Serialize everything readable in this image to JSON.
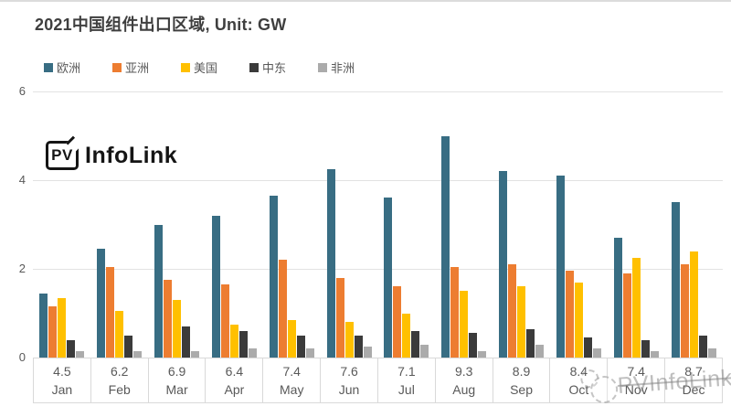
{
  "title": "2021中国组件出口区域, Unit: GW",
  "logo": {
    "box_text": "PV",
    "brand_text": "InfoLink"
  },
  "watermark": {
    "text": "PVInfoLink"
  },
  "chart_data": {
    "type": "bar",
    "title": "2021中国组件出口区域, Unit: GW",
    "unit": "GW",
    "categories": [
      "Jan",
      "Feb",
      "Mar",
      "Apr",
      "May",
      "Jun",
      "Jul",
      "Aug",
      "Sep",
      "Oct",
      "Nov",
      "Dec"
    ],
    "monthly_totals": [
      "4.5",
      "6.2",
      "6.9",
      "6.4",
      "7.4",
      "7.6",
      "7.1",
      "9.3",
      "8.9",
      "8.4",
      "7.4",
      "8.7"
    ],
    "series": [
      {
        "name": "欧洲",
        "color": "#386d83",
        "values": [
          1.45,
          2.45,
          3.0,
          3.2,
          3.65,
          4.25,
          3.6,
          5.0,
          4.2,
          4.1,
          2.7,
          3.5
        ]
      },
      {
        "name": "亚洲",
        "color": "#ed7d31",
        "values": [
          1.15,
          2.05,
          1.75,
          1.65,
          2.2,
          1.8,
          1.6,
          2.05,
          2.1,
          1.95,
          1.9,
          2.1
        ]
      },
      {
        "name": "美国",
        "color": "#ffc000",
        "values": [
          1.35,
          1.05,
          1.3,
          0.75,
          0.85,
          0.8,
          1.0,
          1.5,
          1.6,
          1.7,
          2.25,
          2.4
        ]
      },
      {
        "name": "中东",
        "color": "#3b3b3b",
        "values": [
          0.4,
          0.5,
          0.7,
          0.6,
          0.5,
          0.5,
          0.6,
          0.55,
          0.65,
          0.45,
          0.4,
          0.5
        ]
      },
      {
        "name": "非洲",
        "color": "#ababab",
        "values": [
          0.15,
          0.15,
          0.15,
          0.2,
          0.2,
          0.25,
          0.3,
          0.15,
          0.3,
          0.2,
          0.15,
          0.2
        ]
      }
    ],
    "ylim": [
      0,
      6
    ],
    "yticks": [
      0,
      2,
      4,
      6
    ],
    "grid": true,
    "legend_position": "top-left",
    "axis_label_color": "#595959",
    "gridline_color": "#e2e2e2"
  }
}
